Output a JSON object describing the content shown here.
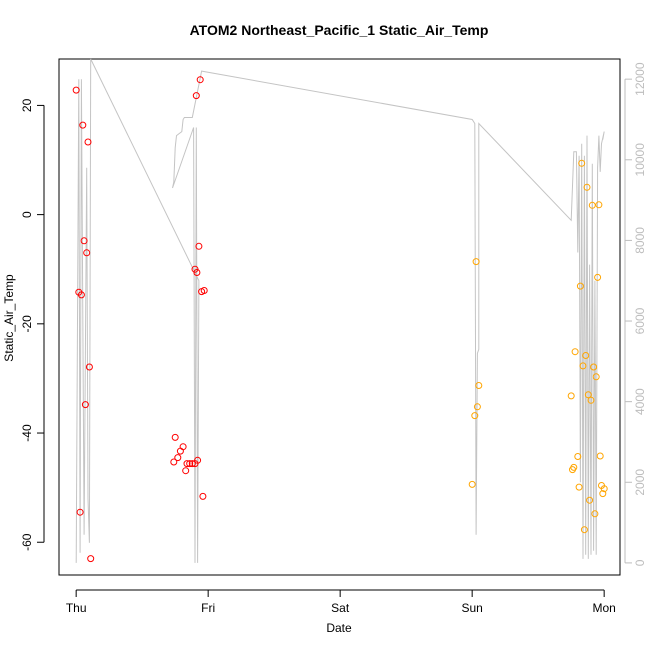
{
  "chart_data": {
    "type": "scatter",
    "title": "ATOM2 Northeast_Pacific_1 Static_Air_Temp",
    "xlabel": "Date",
    "ylabel": "Static_Air_Temp",
    "x_ticks": [
      "Thu",
      "Fri",
      "Sat",
      "Sun",
      "Mon"
    ],
    "x_range_days": [
      -0.13,
      4.12
    ],
    "y_left": {
      "range": [
        -66.0,
        28.5
      ],
      "ticks": [
        -60,
        -40,
        -20,
        0,
        20
      ]
    },
    "y_right": {
      "range": [
        -300,
        12500
      ],
      "ticks": [
        0,
        2000,
        4000,
        6000,
        8000,
        10000,
        12000
      ]
    },
    "grid": false,
    "colors": {
      "series1": "#ff0000",
      "series2": "#ffa500",
      "secondary_line": "#c4c4c4"
    },
    "series": [
      {
        "color": "#ff0000",
        "points": [
          [
            0.0,
            22.8
          ],
          [
            0.02,
            -14.2
          ],
          [
            0.03,
            -54.5
          ],
          [
            0.04,
            -14.7
          ],
          [
            0.05,
            16.4
          ],
          [
            0.06,
            -4.8
          ],
          [
            0.07,
            -34.8
          ],
          [
            0.08,
            -7.0
          ],
          [
            0.09,
            13.3
          ],
          [
            0.1,
            -27.9
          ],
          [
            0.11,
            -63.0
          ],
          [
            0.75,
            -40.8
          ],
          [
            0.74,
            -45.3
          ],
          [
            0.77,
            -44.5
          ],
          [
            0.79,
            -43.3
          ],
          [
            0.81,
            -42.5
          ],
          [
            0.83,
            -46.9
          ],
          [
            0.84,
            -45.6
          ],
          [
            0.86,
            -45.6
          ],
          [
            0.88,
            -45.6
          ],
          [
            0.9,
            -45.6
          ],
          [
            0.92,
            -45.0
          ],
          [
            0.91,
            21.8
          ],
          [
            0.9,
            -10.0
          ],
          [
            0.915,
            -10.6
          ],
          [
            0.93,
            -5.8
          ],
          [
            0.95,
            -14.1
          ],
          [
            0.97,
            -13.9
          ],
          [
            0.96,
            -51.6
          ],
          [
            0.94,
            24.7
          ]
        ]
      },
      {
        "color": "#ffa500",
        "points": [
          [
            3.0,
            -49.4
          ],
          [
            3.02,
            -36.8
          ],
          [
            3.03,
            -8.6
          ],
          [
            3.04,
            -35.2
          ],
          [
            3.05,
            -31.3
          ],
          [
            3.75,
            -33.2
          ],
          [
            3.76,
            -46.7
          ],
          [
            3.77,
            -46.3
          ],
          [
            3.78,
            -25.1
          ],
          [
            3.8,
            -44.3
          ],
          [
            3.81,
            -49.9
          ],
          [
            3.82,
            -13.1
          ],
          [
            3.83,
            9.4
          ],
          [
            3.84,
            -27.7
          ],
          [
            3.85,
            -57.7
          ],
          [
            3.86,
            -25.8
          ],
          [
            3.87,
            5.0
          ],
          [
            3.88,
            -33.0
          ],
          [
            3.89,
            -52.3
          ],
          [
            3.9,
            -34.0
          ],
          [
            3.91,
            1.7
          ],
          [
            3.92,
            -27.9
          ],
          [
            3.93,
            -54.8
          ],
          [
            3.94,
            -29.7
          ],
          [
            3.95,
            -11.5
          ],
          [
            3.96,
            1.8
          ],
          [
            3.97,
            -44.2
          ],
          [
            3.98,
            -49.6
          ],
          [
            3.99,
            -51.1
          ],
          [
            4.0,
            -50.2
          ]
        ]
      }
    ],
    "secondary_line": [
      [
        0.0,
        0.0
      ],
      [
        0.02,
        12000
      ],
      [
        0.03,
        250
      ],
      [
        0.04,
        12000
      ],
      [
        0.06,
        700
      ],
      [
        0.08,
        9800
      ],
      [
        0.09,
        1600
      ],
      [
        0.1,
        500
      ],
      [
        0.11,
        12500
      ],
      [
        0.93,
        7000
      ],
      [
        0.92,
        0
      ],
      [
        0.91,
        10800
      ],
      [
        0.9,
        0
      ],
      [
        0.89,
        10800
      ],
      [
        0.73,
        9300
      ],
      [
        0.74,
        9450
      ],
      [
        0.75,
        10300
      ],
      [
        0.76,
        10600
      ],
      [
        0.78,
        10650
      ],
      [
        0.8,
        10700
      ],
      [
        0.81,
        11000
      ],
      [
        0.82,
        11050
      ],
      [
        0.88,
        11050
      ],
      [
        0.95,
        12200
      ],
      [
        3.0,
        11000
      ],
      [
        3.02,
        10900
      ],
      [
        3.03,
        700
      ],
      [
        3.04,
        5200
      ],
      [
        3.05,
        5300
      ],
      [
        3.05,
        10900
      ],
      [
        3.75,
        8500
      ],
      [
        3.77,
        10200
      ],
      [
        3.79,
        10200
      ],
      [
        3.8,
        7700
      ],
      [
        3.81,
        10100
      ],
      [
        3.82,
        2000
      ],
      [
        3.83,
        10400
      ],
      [
        3.84,
        100
      ],
      [
        3.85,
        10100
      ],
      [
        3.86,
        200
      ],
      [
        3.87,
        10600
      ],
      [
        3.88,
        100
      ],
      [
        3.89,
        7400
      ],
      [
        3.9,
        200
      ],
      [
        3.91,
        9900
      ],
      [
        3.92,
        300
      ],
      [
        3.93,
        7000
      ],
      [
        3.94,
        200
      ],
      [
        3.95,
        9800
      ],
      [
        3.96,
        10600
      ],
      [
        3.97,
        9700
      ],
      [
        3.98,
        10400
      ],
      [
        4.0,
        10700
      ],
      [
        3.99,
        10500
      ]
    ]
  }
}
